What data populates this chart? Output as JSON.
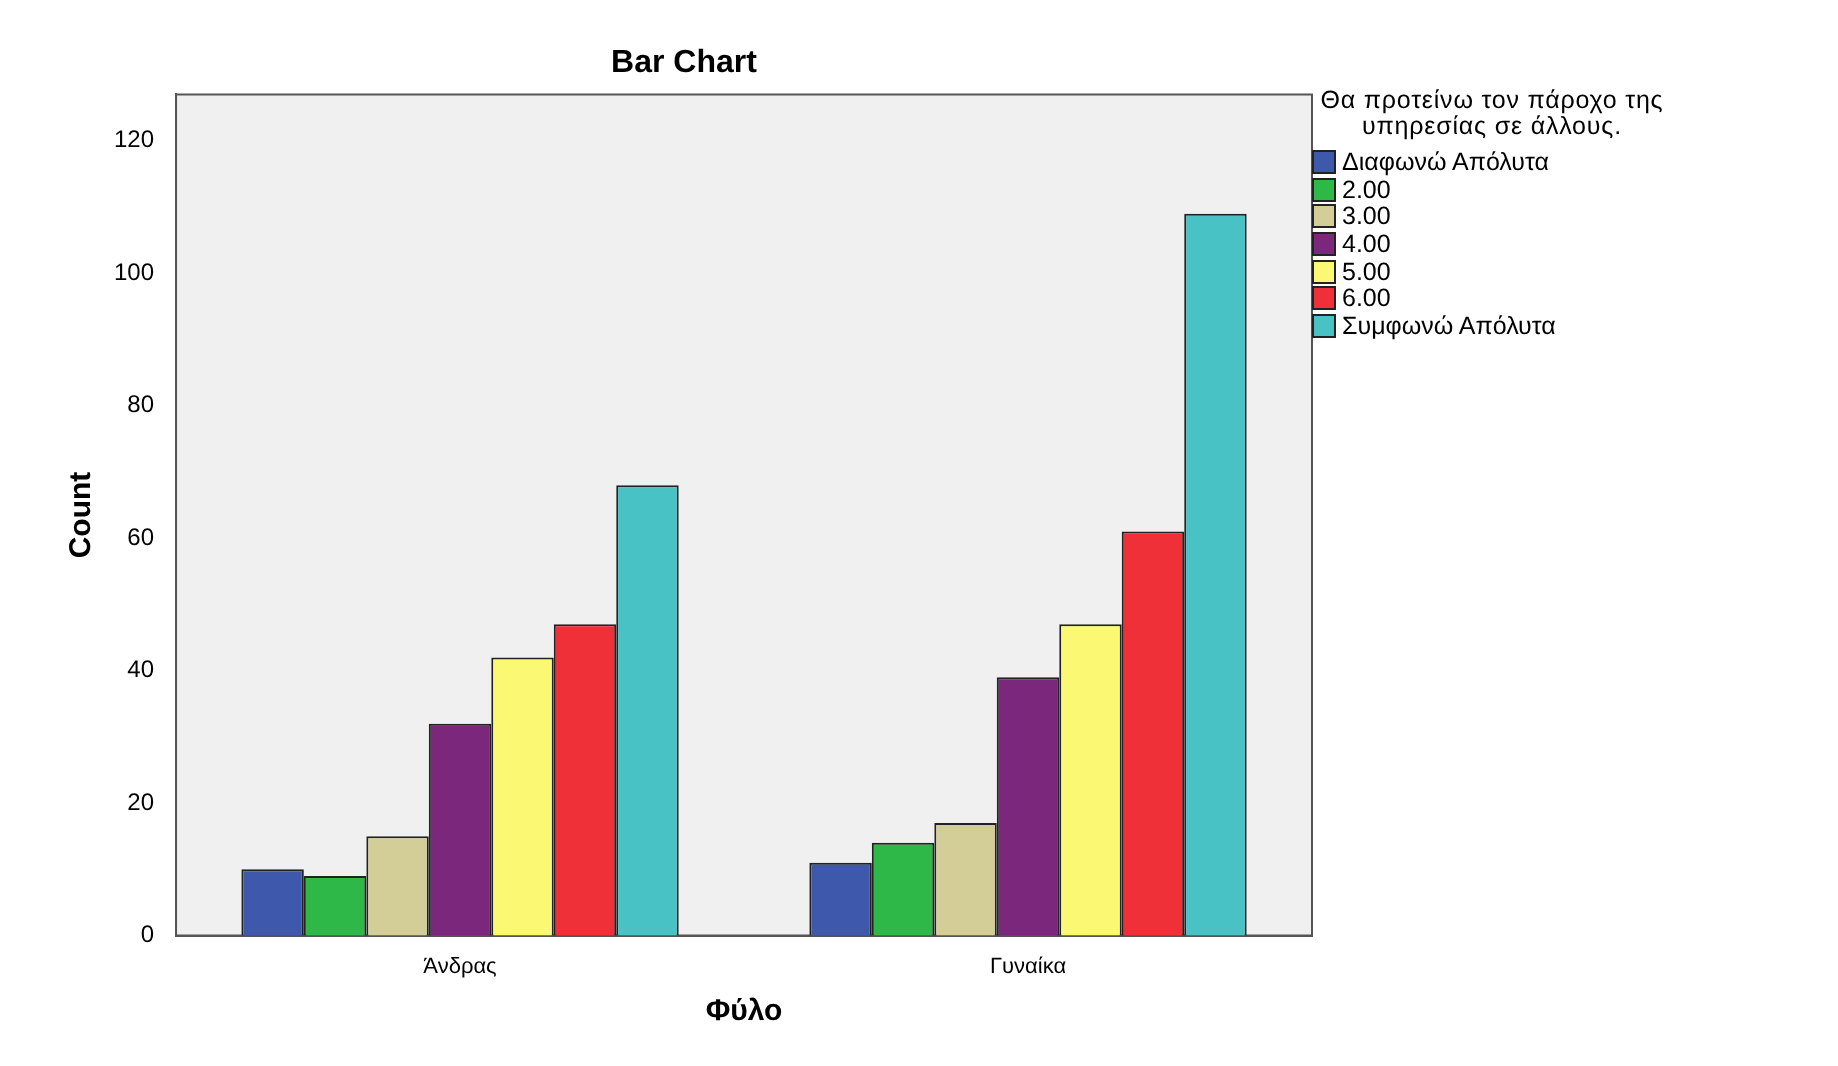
{
  "chart_data": {
    "type": "bar",
    "title": "Bar Chart",
    "xlabel": "Φύλο",
    "ylabel": "Count",
    "legend_title": "Θα προτείνω τον πάροχο της υπηρεσίας σε άλλους.",
    "categories": [
      "Άνδρας",
      "Γυναίκα"
    ],
    "series": [
      {
        "name": "Διαφωνώ Απόλυτα",
        "color": "#3e58ac",
        "values": [
          10,
          11
        ]
      },
      {
        "name": "2.00",
        "color": "#2eb848",
        "values": [
          9,
          14
        ]
      },
      {
        "name": "3.00",
        "color": "#d3ce97",
        "values": [
          15,
          17
        ]
      },
      {
        "name": "4.00",
        "color": "#7b287c",
        "values": [
          32,
          39
        ]
      },
      {
        "name": "5.00",
        "color": "#fbf873",
        "values": [
          42,
          47
        ]
      },
      {
        "name": "6.00",
        "color": "#ef3038",
        "values": [
          47,
          61
        ]
      },
      {
        "name": "Συμφωνώ Απόλυτα",
        "color": "#48c2c5",
        "values": [
          68,
          109
        ]
      }
    ],
    "ylim": [
      0,
      127
    ],
    "yticks": [
      0,
      20,
      40,
      60,
      80,
      100,
      120
    ],
    "grid": false,
    "legend": "top right"
  }
}
